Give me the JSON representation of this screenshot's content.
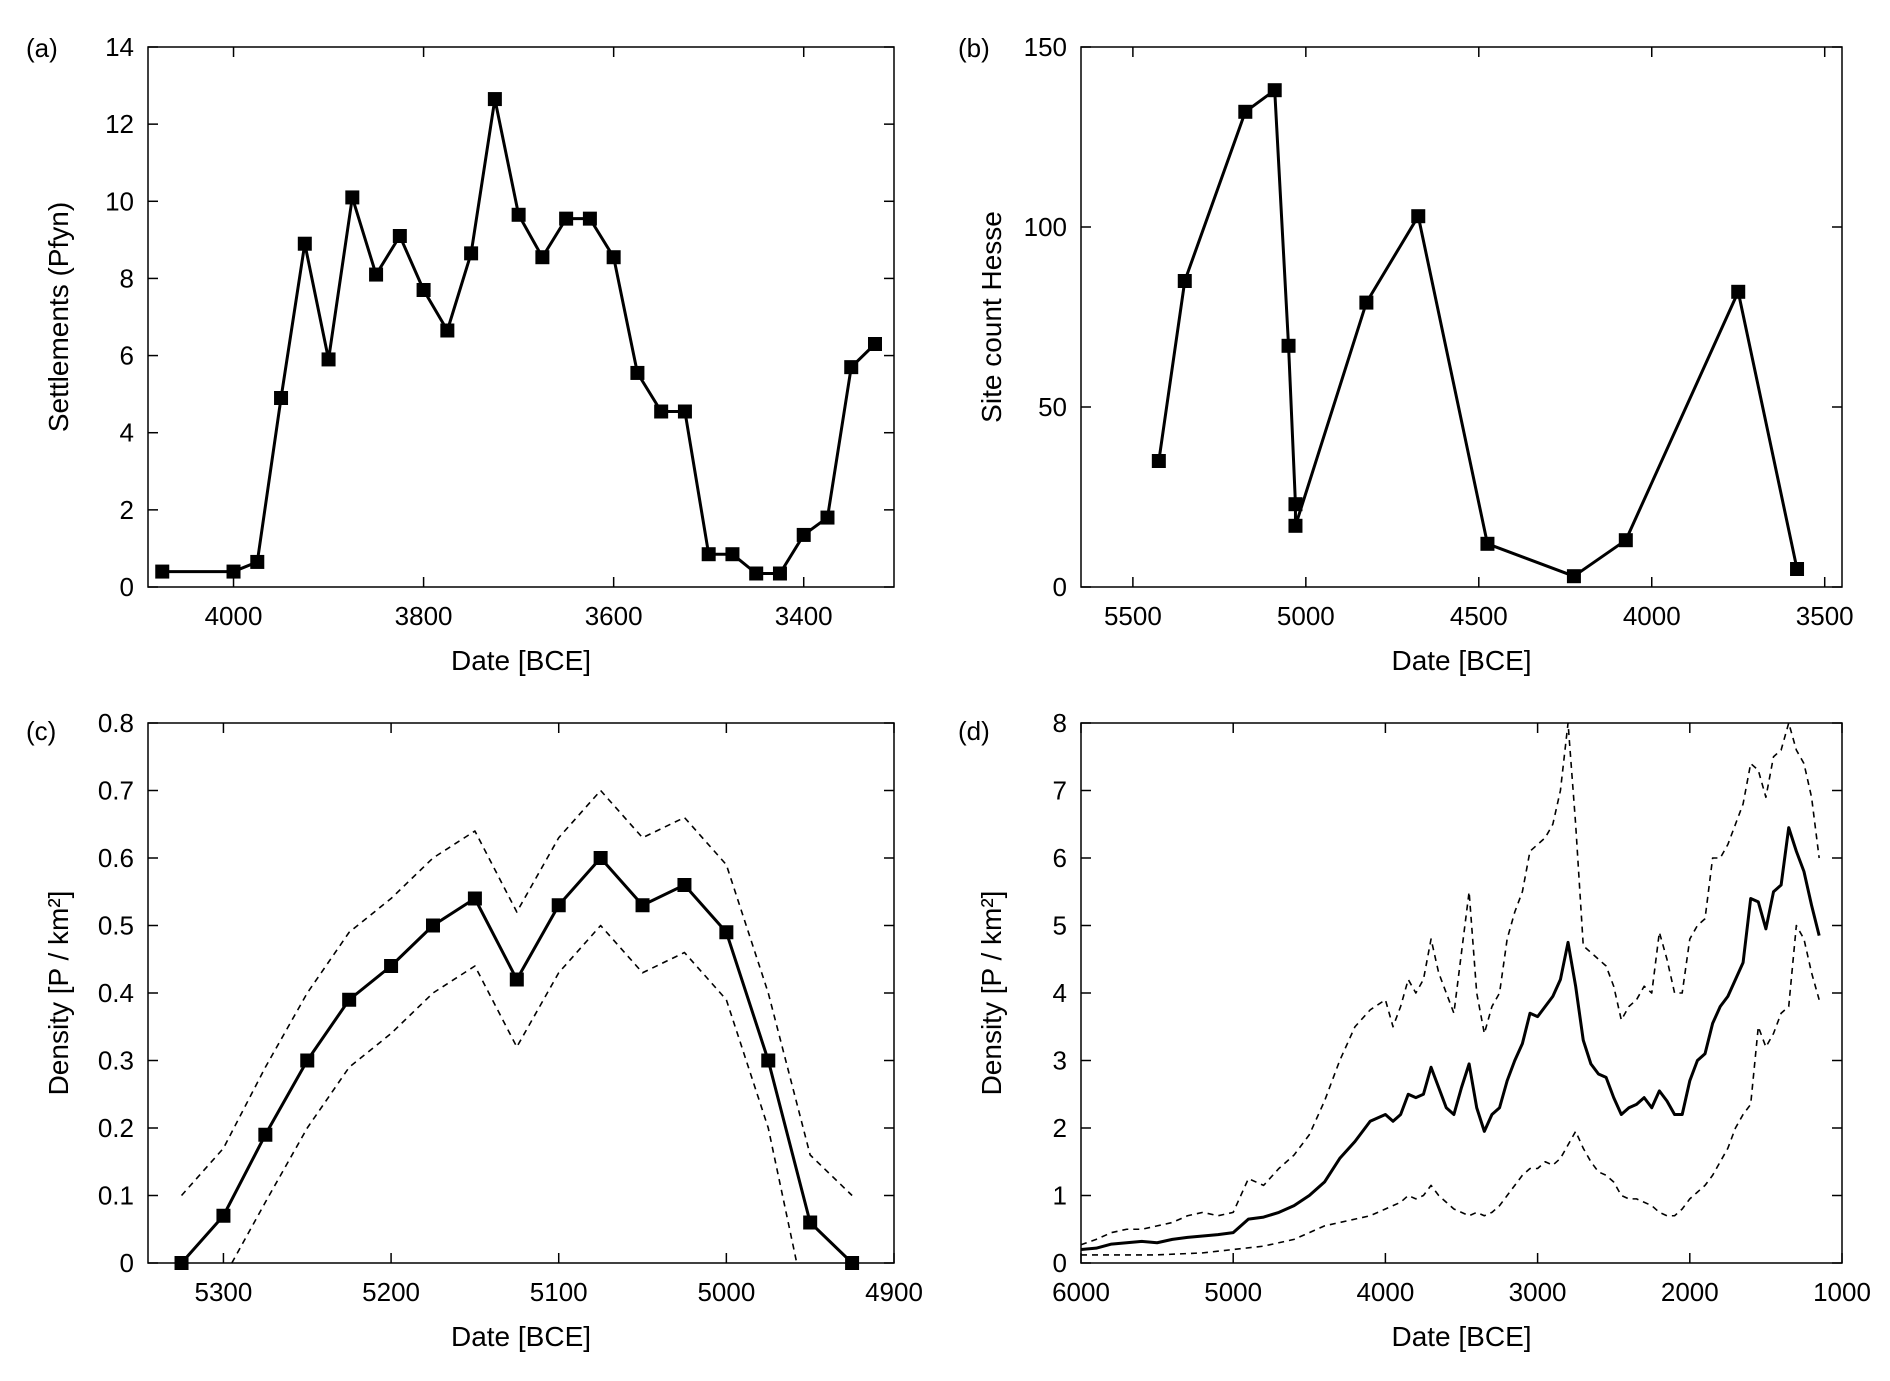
{
  "figure": {
    "panels": [
      {
        "label": "(a)"
      },
      {
        "label": "(b)"
      },
      {
        "label": "(c)"
      },
      {
        "label": "(d)"
      }
    ]
  },
  "chart_data": [
    {
      "type": "line",
      "panel_label": "(a)",
      "xlabel": "Date [BCE]",
      "ylabel": "Settlements (Pfyn)",
      "xlim": [
        4090,
        3305
      ],
      "ylim": [
        0,
        14
      ],
      "xticks": [
        4000,
        3800,
        3600,
        3400
      ],
      "yticks": [
        0,
        2,
        4,
        6,
        8,
        10,
        12,
        14
      ],
      "grid": false,
      "marker": "square",
      "series": [
        {
          "x": [
            4075,
            4000,
            3975,
            3950,
            3925,
            3900,
            3875,
            3850,
            3825,
            3800,
            3775,
            3750,
            3725,
            3700,
            3675,
            3650,
            3625,
            3600,
            3575,
            3550,
            3525,
            3500,
            3475,
            3450,
            3425,
            3400,
            3375,
            3350,
            3325
          ],
          "y": [
            0.4,
            0.4,
            0.65,
            4.9,
            8.9,
            5.9,
            10.1,
            8.1,
            9.1,
            7.7,
            6.65,
            8.65,
            12.65,
            9.65,
            8.55,
            9.55,
            9.55,
            8.55,
            5.55,
            4.55,
            4.55,
            0.85,
            0.85,
            0.35,
            0.35,
            1.35,
            1.8,
            5.7,
            6.3
          ]
        }
      ]
    },
    {
      "type": "line",
      "panel_label": "(b)",
      "xlabel": "Date [BCE]",
      "ylabel": "Site count Hesse",
      "xlim": [
        5650,
        3450
      ],
      "ylim": [
        0,
        150
      ],
      "xticks": [
        5500,
        5000,
        4500,
        4000,
        3500
      ],
      "yticks": [
        0,
        50,
        100,
        150
      ],
      "grid": false,
      "marker": "square",
      "series": [
        {
          "x": [
            5425,
            5350,
            5175,
            5090,
            5050,
            5030,
            5030,
            4825,
            4675,
            4475,
            4225,
            4075,
            3750,
            3580
          ],
          "y": [
            35,
            85,
            132,
            138,
            67,
            23,
            17,
            79,
            103,
            12,
            3,
            13,
            82,
            5
          ]
        }
      ]
    },
    {
      "type": "line",
      "panel_label": "(c)",
      "xlabel": "Date [BCE]",
      "ylabel": "Density [P / km²]",
      "xlim": [
        5345,
        4900
      ],
      "ylim": [
        0,
        0.8
      ],
      "xticks": [
        5300,
        5200,
        5100,
        5000,
        4900
      ],
      "yticks": [
        0,
        0.1,
        0.2,
        0.3,
        0.4,
        0.5,
        0.6,
        0.7,
        0.8
      ],
      "grid": false,
      "series": [
        {
          "style": "solid",
          "marker": "square",
          "x": [
            5325,
            5300,
            5275,
            5250,
            5225,
            5200,
            5175,
            5150,
            5125,
            5100,
            5075,
            5050,
            5025,
            5000,
            4975,
            4950,
            4925
          ],
          "y": [
            0,
            0.07,
            0.19,
            0.3,
            0.39,
            0.44,
            0.5,
            0.54,
            0.42,
            0.53,
            0.6,
            0.53,
            0.56,
            0.49,
            0.3,
            0.06,
            0
          ]
        },
        {
          "style": "dashed",
          "x": [
            5325,
            5300,
            5275,
            5250,
            5225,
            5200,
            5175,
            5150,
            5125,
            5100,
            5075,
            5050,
            5025,
            5000,
            4975,
            4950,
            4925
          ],
          "y": [
            0.1,
            0.17,
            0.29,
            0.4,
            0.49,
            0.54,
            0.6,
            0.64,
            0.52,
            0.63,
            0.7,
            0.63,
            0.66,
            0.59,
            0.4,
            0.16,
            0.1
          ]
        },
        {
          "style": "dashed",
          "x": [
            5295,
            5275,
            5250,
            5225,
            5200,
            5175,
            5150,
            5125,
            5100,
            5075,
            5050,
            5025,
            5000,
            4975,
            4958
          ],
          "y": [
            0,
            0.09,
            0.2,
            0.29,
            0.34,
            0.4,
            0.44,
            0.32,
            0.43,
            0.5,
            0.43,
            0.46,
            0.39,
            0.2,
            0
          ]
        }
      ]
    },
    {
      "type": "line",
      "panel_label": "(d)",
      "xlabel": "Date [BCE]",
      "ylabel": "Density [P / km²]",
      "xlim": [
        6000,
        1000
      ],
      "ylim": [
        0,
        8
      ],
      "xticks": [
        6000,
        5000,
        4000,
        3000,
        2000,
        1000
      ],
      "yticks": [
        0,
        1,
        2,
        3,
        4,
        5,
        6,
        7,
        8
      ],
      "grid": false,
      "series": [
        {
          "style": "solid",
          "x": [
            6000,
            5900,
            5800,
            5700,
            5600,
            5500,
            5400,
            5300,
            5200,
            5100,
            5000,
            4900,
            4800,
            4700,
            4600,
            4500,
            4400,
            4300,
            4200,
            4100,
            4000,
            3950,
            3900,
            3850,
            3800,
            3750,
            3700,
            3650,
            3600,
            3550,
            3500,
            3450,
            3400,
            3350,
            3300,
            3250,
            3200,
            3150,
            3100,
            3050,
            3000,
            2950,
            2900,
            2850,
            2800,
            2750,
            2700,
            2650,
            2600,
            2550,
            2500,
            2450,
            2400,
            2350,
            2300,
            2250,
            2200,
            2150,
            2100,
            2050,
            2000,
            1950,
            1900,
            1850,
            1800,
            1750,
            1700,
            1650,
            1600,
            1550,
            1500,
            1450,
            1400,
            1350,
            1300,
            1250,
            1200,
            1150
          ],
          "y": [
            0.2,
            0.22,
            0.28,
            0.3,
            0.32,
            0.3,
            0.35,
            0.38,
            0.4,
            0.42,
            0.45,
            0.65,
            0.68,
            0.75,
            0.85,
            1.0,
            1.2,
            1.55,
            1.8,
            2.1,
            2.2,
            2.1,
            2.2,
            2.5,
            2.45,
            2.5,
            2.9,
            2.6,
            2.3,
            2.2,
            2.6,
            2.95,
            2.3,
            1.95,
            2.2,
            2.3,
            2.7,
            3.0,
            3.25,
            3.7,
            3.65,
            3.8,
            3.95,
            4.2,
            4.75,
            4.1,
            3.3,
            2.95,
            2.8,
            2.75,
            2.45,
            2.2,
            2.3,
            2.35,
            2.45,
            2.3,
            2.55,
            2.4,
            2.2,
            2.2,
            2.7,
            3.0,
            3.1,
            3.55,
            3.8,
            3.95,
            4.2,
            4.45,
            5.4,
            5.35,
            4.95,
            5.5,
            5.6,
            6.45,
            6.1,
            5.8,
            5.3,
            4.85
          ]
        },
        {
          "style": "dashed",
          "x": [
            6000,
            5900,
            5800,
            5700,
            5600,
            5500,
            5400,
            5300,
            5200,
            5100,
            5000,
            4900,
            4800,
            4700,
            4600,
            4500,
            4400,
            4300,
            4200,
            4100,
            4000,
            3950,
            3900,
            3850,
            3800,
            3750,
            3700,
            3650,
            3600,
            3550,
            3500,
            3450,
            3400,
            3350,
            3300,
            3250,
            3200,
            3150,
            3100,
            3050,
            3000,
            2950,
            2900,
            2850,
            2800,
            2750,
            2700,
            2650,
            2600,
            2550,
            2500,
            2450,
            2400,
            2350,
            2300,
            2250,
            2200,
            2150,
            2100,
            2050,
            2000,
            1950,
            1900,
            1850,
            1800,
            1750,
            1700,
            1650,
            1600,
            1550,
            1500,
            1450,
            1400,
            1350,
            1300,
            1250,
            1200,
            1150
          ],
          "y": [
            0.27,
            0.35,
            0.45,
            0.5,
            0.5,
            0.55,
            0.6,
            0.7,
            0.75,
            0.7,
            0.75,
            1.25,
            1.15,
            1.4,
            1.6,
            1.9,
            2.4,
            3.0,
            3.5,
            3.75,
            3.9,
            3.5,
            3.8,
            4.2,
            4.0,
            4.2,
            4.8,
            4.3,
            4.0,
            3.7,
            4.6,
            5.5,
            4.0,
            3.4,
            3.8,
            4.0,
            4.8,
            5.2,
            5.5,
            6.1,
            6.2,
            6.3,
            6.5,
            7.0,
            8.0,
            6.5,
            4.7,
            4.6,
            4.5,
            4.4,
            4.1,
            3.6,
            3.8,
            3.9,
            4.1,
            4.0,
            4.9,
            4.5,
            4.0,
            4.0,
            4.8,
            5.0,
            5.1,
            6.0,
            6.0,
            6.2,
            6.5,
            6.8,
            7.4,
            7.3,
            6.9,
            7.5,
            7.6,
            8.0,
            7.6,
            7.4,
            6.9,
            6.0
          ]
        },
        {
          "style": "dashed",
          "x": [
            6000,
            5500,
            5200,
            5000,
            4800,
            4600,
            4500,
            4400,
            4300,
            4200,
            4100,
            4000,
            3950,
            3900,
            3850,
            3800,
            3750,
            3700,
            3650,
            3600,
            3550,
            3500,
            3450,
            3400,
            3350,
            3300,
            3250,
            3200,
            3150,
            3100,
            3050,
            3000,
            2950,
            2900,
            2850,
            2800,
            2750,
            2700,
            2650,
            2600,
            2550,
            2500,
            2450,
            2400,
            2350,
            2300,
            2250,
            2200,
            2150,
            2100,
            2050,
            2000,
            1950,
            1900,
            1850,
            1800,
            1750,
            1700,
            1650,
            1600,
            1550,
            1500,
            1450,
            1400,
            1350,
            1300,
            1250,
            1200,
            1150
          ],
          "y": [
            0.12,
            0.12,
            0.15,
            0.2,
            0.25,
            0.35,
            0.45,
            0.55,
            0.6,
            0.65,
            0.7,
            0.8,
            0.85,
            0.9,
            1.0,
            0.95,
            1.0,
            1.15,
            1.0,
            0.9,
            0.8,
            0.75,
            0.7,
            0.75,
            0.7,
            0.75,
            0.85,
            1.0,
            1.15,
            1.3,
            1.4,
            1.4,
            1.5,
            1.45,
            1.55,
            1.75,
            1.95,
            1.7,
            1.5,
            1.35,
            1.3,
            1.2,
            1.0,
            0.95,
            0.95,
            0.9,
            0.85,
            0.75,
            0.7,
            0.7,
            0.8,
            0.95,
            1.05,
            1.15,
            1.3,
            1.5,
            1.7,
            2.0,
            2.2,
            2.35,
            3.5,
            3.2,
            3.4,
            3.7,
            3.8,
            5.0,
            4.8,
            4.3,
            3.9
          ]
        }
      ]
    }
  ]
}
